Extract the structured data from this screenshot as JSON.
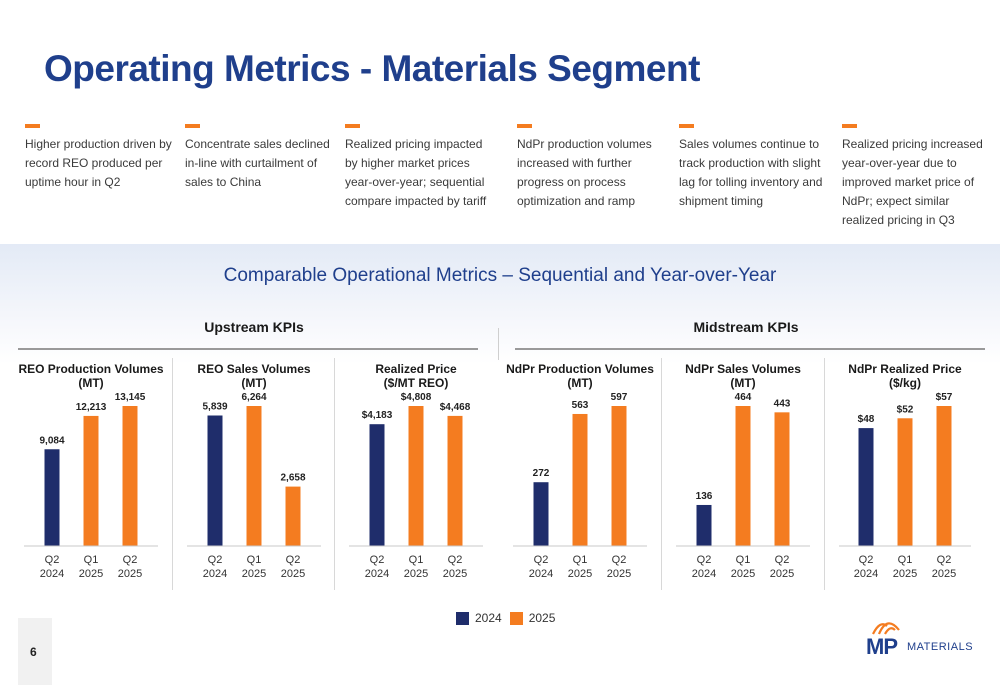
{
  "title": "Operating Metrics - Materials Segment",
  "bullets": [
    "Higher production driven by record REO produced per uptime hour in Q2",
    "Concentrate sales declined in-line with curtailment of sales to China",
    "Realized pricing impacted by higher market prices year-over-year; sequential compare impacted by tariff",
    "NdPr production volumes increased with further progress on process optimization and ramp",
    "Sales volumes continue to track production with slight lag for tolling inventory and shipment timing",
    "Realized pricing increased year-over-year due to improved market price of NdPr; expect similar realized pricing in Q3"
  ],
  "subtitle": "Comparable Operational Metrics – Sequential and Year-over-Year",
  "groups": {
    "upstream": "Upstream KPIs",
    "midstream": "Midstream KPIs"
  },
  "legend": {
    "y2024": "2024",
    "y2025": "2025"
  },
  "colors": {
    "y2024": "#1f2d6b",
    "y2025": "#f47c20",
    "title": "#1f3f8c"
  },
  "page_number": "6",
  "logo": {
    "mp": "MP",
    "word": "MATERIALS"
  },
  "chart_data": [
    {
      "type": "bar",
      "title": "REO Production Volumes (MT)",
      "title_lines": [
        "REO Production Volumes",
        "(MT)"
      ],
      "categories": [
        [
          "Q2",
          "2024"
        ],
        [
          "Q1",
          "2025"
        ],
        [
          "Q2",
          "2025"
        ]
      ],
      "values": [
        9084,
        12213,
        13145
      ],
      "labels": [
        "9,084",
        "12,213",
        "13,145"
      ],
      "years": [
        "2024",
        "2025",
        "2025"
      ]
    },
    {
      "type": "bar",
      "title": "REO Sales Volumes (MT)",
      "title_lines": [
        "REO Sales Volumes",
        "(MT)"
      ],
      "categories": [
        [
          "Q2",
          "2024"
        ],
        [
          "Q1",
          "2025"
        ],
        [
          "Q2",
          "2025"
        ]
      ],
      "values": [
        5839,
        6264,
        2658
      ],
      "labels": [
        "5,839",
        "6,264",
        "2,658"
      ],
      "years": [
        "2024",
        "2025",
        "2025"
      ]
    },
    {
      "type": "bar",
      "title": "Realized Price ($/MT REO)",
      "title_lines": [
        "Realized Price",
        "($/MT REO)"
      ],
      "categories": [
        [
          "Q2",
          "2024"
        ],
        [
          "Q1",
          "2025"
        ],
        [
          "Q2",
          "2025"
        ]
      ],
      "values": [
        4183,
        4808,
        4468
      ],
      "labels": [
        "$4,183",
        "$4,808",
        "$4,468"
      ],
      "years": [
        "2024",
        "2025",
        "2025"
      ]
    },
    {
      "type": "bar",
      "title": "NdPr Production Volumes (MT)",
      "title_lines": [
        "NdPr Production Volumes",
        "(MT)"
      ],
      "categories": [
        [
          "Q2",
          "2024"
        ],
        [
          "Q1",
          "2025"
        ],
        [
          "Q2",
          "2025"
        ]
      ],
      "values": [
        272,
        563,
        597
      ],
      "labels": [
        "272",
        "563",
        "597"
      ],
      "years": [
        "2024",
        "2025",
        "2025"
      ]
    },
    {
      "type": "bar",
      "title": "NdPr Sales Volumes (MT)",
      "title_lines": [
        "NdPr Sales Volumes",
        "(MT)"
      ],
      "categories": [
        [
          "Q2",
          "2024"
        ],
        [
          "Q1",
          "2025"
        ],
        [
          "Q2",
          "2025"
        ]
      ],
      "values": [
        136,
        464,
        443
      ],
      "labels": [
        "136",
        "464",
        "443"
      ],
      "years": [
        "2024",
        "2025",
        "2025"
      ]
    },
    {
      "type": "bar",
      "title": "NdPr Realized Price ($/kg)",
      "title_lines": [
        "NdPr Realized Price",
        "($/kg)"
      ],
      "categories": [
        [
          "Q2",
          "2024"
        ],
        [
          "Q1",
          "2025"
        ],
        [
          "Q2",
          "2025"
        ]
      ],
      "values": [
        48,
        52,
        57
      ],
      "labels": [
        "$48",
        "$52",
        "$57"
      ],
      "years": [
        "2024",
        "2025",
        "2025"
      ]
    }
  ]
}
